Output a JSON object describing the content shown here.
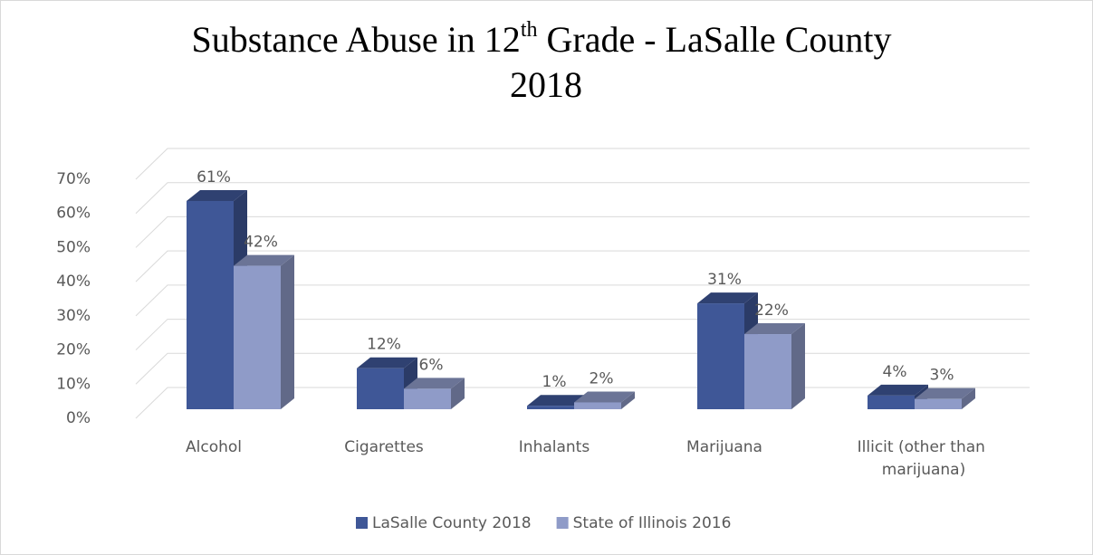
{
  "chart_data": {
    "type": "bar3d",
    "title": "Substance Abuse in 12th Grade - LaSalle County 2018",
    "categories": [
      "Alcohol",
      "Cigarettes",
      "Inhalants",
      "Marijuana",
      "Illicit (other than marijuana)"
    ],
    "series": [
      {
        "name": "LaSalle County 2018",
        "color": "#3f5797",
        "values": [
          61,
          12,
          1,
          31,
          4
        ],
        "value_labels": [
          "61%",
          "12%",
          "1%",
          "31%",
          "4%"
        ]
      },
      {
        "name": "State of Illinois 2016",
        "color": "#8f9bc8",
        "values": [
          42,
          6,
          2,
          22,
          3
        ],
        "value_labels": [
          "42%",
          "6%",
          "2%",
          "22%",
          "3%"
        ]
      }
    ],
    "ylim": [
      0,
      70
    ],
    "yticks": [
      {
        "value": 0,
        "label": "0%"
      },
      {
        "value": 10,
        "label": "10%"
      },
      {
        "value": 20,
        "label": "20%"
      },
      {
        "value": 30,
        "label": "30%"
      },
      {
        "value": 40,
        "label": "40%"
      },
      {
        "value": 50,
        "label": "50%"
      },
      {
        "value": 60,
        "label": "60%"
      },
      {
        "value": 70,
        "label": "70%"
      }
    ],
    "grid": true,
    "legend": "bottom"
  }
}
